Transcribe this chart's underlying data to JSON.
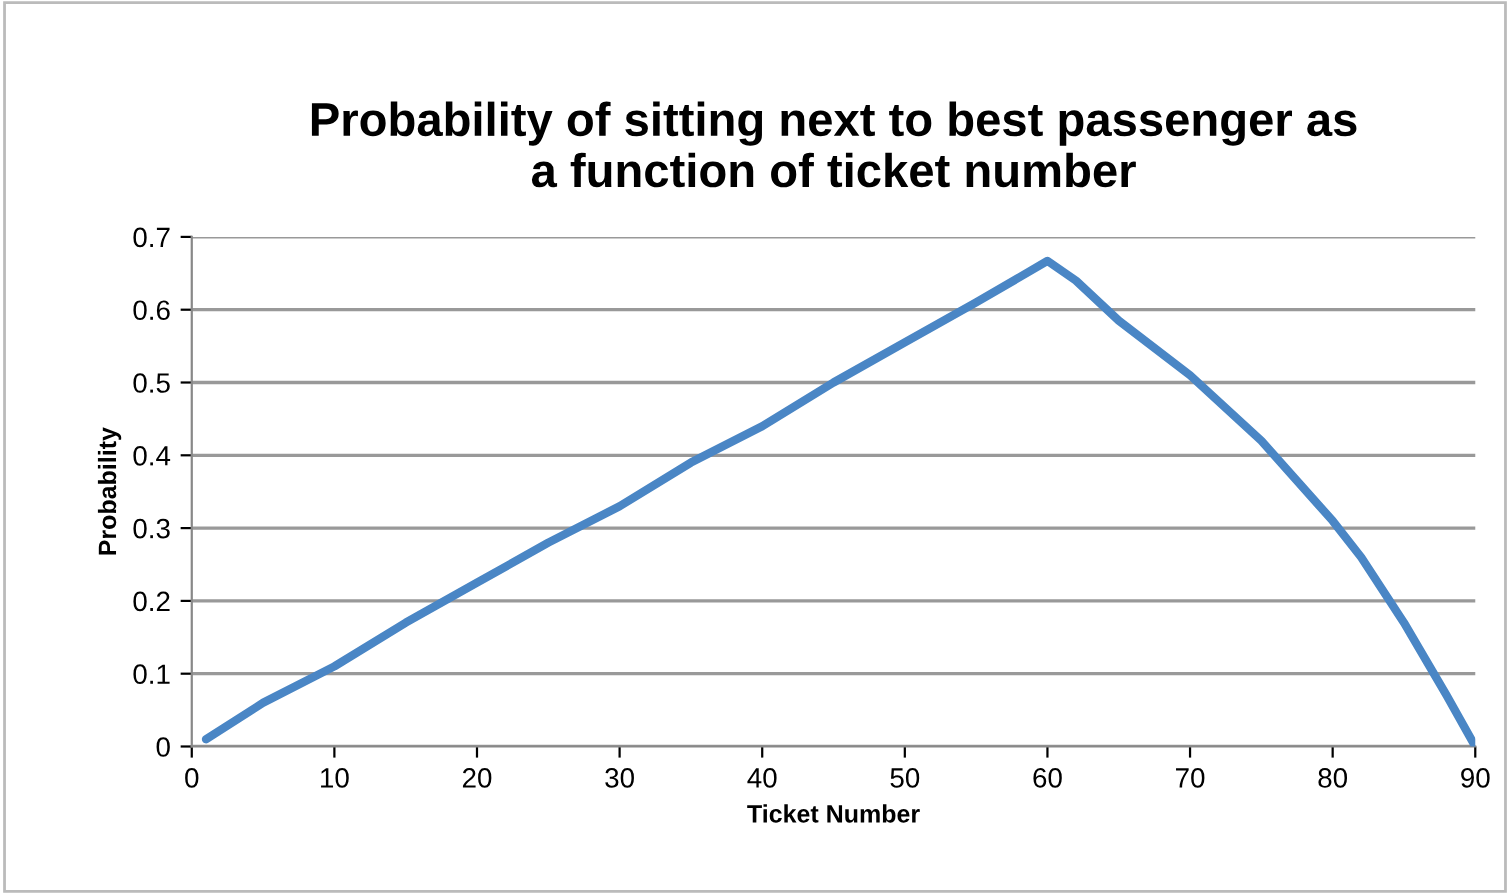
{
  "chart_data": {
    "type": "line",
    "title": "Probability of sitting next to best passenger as\na function of ticket number",
    "xlabel": "Ticket Number",
    "ylabel": "Probability",
    "series": [
      {
        "color": "#4a86c5",
        "x": [
          1,
          5,
          10,
          15,
          20,
          25,
          30,
          35,
          40,
          45,
          50,
          55,
          60,
          62,
          65,
          70,
          75,
          80,
          82,
          85,
          88,
          90
        ],
        "values": [
          0.01,
          0.06,
          0.11,
          0.17,
          0.225,
          0.28,
          0.33,
          0.39,
          0.44,
          0.5,
          0.555,
          0.61,
          0.667,
          0.64,
          0.585,
          0.51,
          0.42,
          0.31,
          0.26,
          0.17,
          0.07,
          0.0
        ]
      }
    ],
    "xlim": [
      0,
      90
    ],
    "ylim": [
      0,
      0.7
    ],
    "xticks": [
      0,
      10,
      20,
      30,
      40,
      50,
      60,
      70,
      80,
      90
    ],
    "yticks": [
      0,
      0.1,
      0.2,
      0.3,
      0.4,
      0.5,
      0.6,
      0.7
    ],
    "grid": "y",
    "marker": "none",
    "line_style": "solid"
  }
}
